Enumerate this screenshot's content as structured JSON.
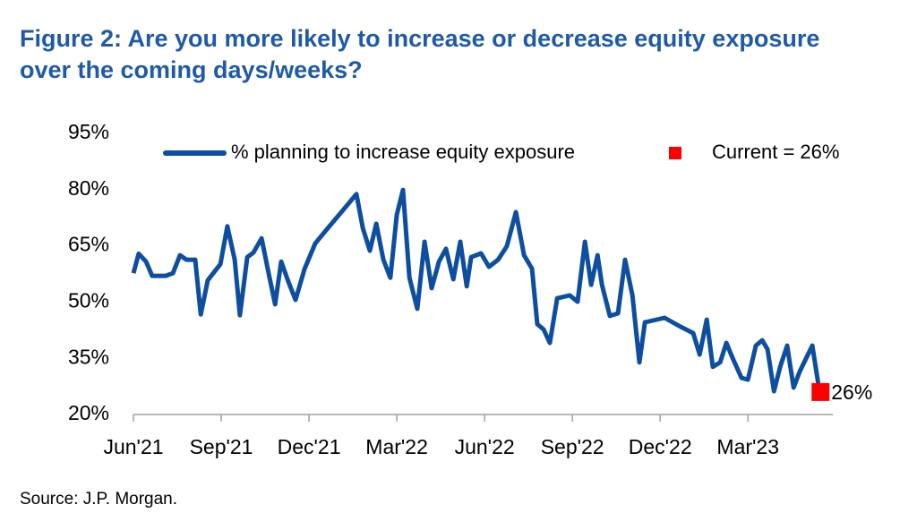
{
  "chart_data": {
    "type": "line",
    "title": [
      "Figure 2: Are you more likely to increase or decrease equity exposure",
      "over the coming days/weeks?"
    ],
    "source": "Source: J.P. Morgan.",
    "xlim": [
      0,
      23.9
    ],
    "ylim": [
      20,
      95
    ],
    "yticks": [
      {
        "value": 20,
        "label": "20%"
      },
      {
        "value": 35,
        "label": "35%"
      },
      {
        "value": 50,
        "label": "50%"
      },
      {
        "value": 65,
        "label": "65%"
      },
      {
        "value": 80,
        "label": "80%"
      },
      {
        "value": 95,
        "label": "95%"
      }
    ],
    "xticks": [
      {
        "value": 0,
        "label": "Jun'21"
      },
      {
        "value": 3,
        "label": "Sep'21"
      },
      {
        "value": 6,
        "label": "Dec'21"
      },
      {
        "value": 9,
        "label": "Mar'22"
      },
      {
        "value": 12,
        "label": "Jun'22"
      },
      {
        "value": 15,
        "label": "Sep'22"
      },
      {
        "value": 18,
        "label": "Dec'22"
      },
      {
        "value": 21,
        "label": "Mar'23"
      }
    ],
    "series": [
      {
        "name": "% planning to increase equity exposure",
        "color": "#0d4ea0",
        "x": [
          0,
          0.18,
          0.43,
          0.64,
          1.1,
          1.35,
          1.59,
          1.81,
          2.11,
          2.3,
          2.54,
          2.97,
          3.21,
          3.46,
          3.64,
          3.89,
          4.1,
          4.38,
          4.62,
          4.84,
          5.05,
          5.3,
          5.54,
          5.85,
          6.21,
          6.64,
          7.16,
          7.62,
          7.84,
          8.08,
          8.3,
          8.54,
          8.78,
          9.0,
          9.21,
          9.43,
          9.7,
          9.95,
          10.19,
          10.44,
          10.68,
          10.93,
          11.17,
          11.39,
          11.54,
          11.88,
          12.15,
          12.46,
          12.76,
          13.07,
          13.35,
          13.62,
          13.8,
          14.02,
          14.23,
          14.48,
          14.91,
          15.18,
          15.43,
          15.64,
          15.86,
          16.01,
          16.28,
          16.56,
          16.8,
          17.05,
          17.29,
          17.48,
          18.15,
          18.7,
          19.13,
          19.35,
          19.59,
          19.8,
          20.05,
          20.26,
          20.48,
          20.78,
          21.0,
          21.27,
          21.49,
          21.67,
          21.89,
          22.1,
          22.34,
          22.56,
          22.77,
          23.2,
          23.42
        ],
        "values": [
          57.7,
          62.9,
          60.8,
          57.0,
          57.0,
          57.7,
          62.5,
          61.3,
          61.3,
          46.7,
          55.8,
          60.1,
          70.2,
          61.3,
          46.5,
          62.0,
          63.2,
          67.0,
          57.7,
          49.4,
          60.8,
          55.3,
          50.6,
          58.9,
          65.6,
          69.7,
          74.5,
          78.8,
          69.7,
          63.7,
          70.9,
          61.3,
          56.5,
          73.3,
          79.9,
          56.5,
          48.2,
          66.1,
          53.7,
          60.8,
          64.2,
          56.1,
          66.1,
          54.2,
          62.0,
          63.0,
          59.4,
          61.3,
          64.9,
          74.0,
          62.5,
          58.9,
          44.1,
          42.7,
          39.1,
          51.0,
          51.8,
          50.1,
          66.1,
          54.6,
          62.5,
          54.6,
          46.3,
          47.0,
          61.3,
          51.8,
          33.9,
          44.6,
          45.8,
          43.4,
          41.7,
          36.0,
          45.3,
          32.7,
          33.9,
          39.1,
          35.0,
          29.8,
          29.3,
          38.4,
          39.8,
          37.4,
          26.2,
          32.7,
          38.4,
          27.2,
          31.5,
          38.4,
          27.4
        ]
      }
    ],
    "current": {
      "name": "Current = 26%",
      "color": "#ff0000",
      "x": 23.48,
      "value": 26,
      "value_label": "26%"
    }
  }
}
